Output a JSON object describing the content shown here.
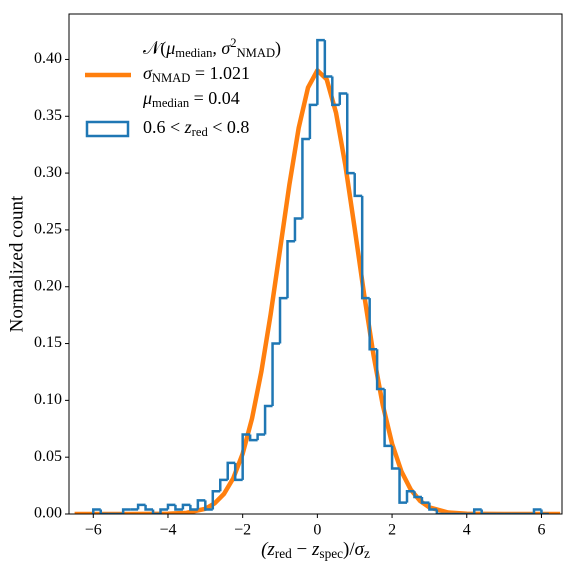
{
  "chart_data": {
    "type": "histogram",
    "ylabel": "Normalized count",
    "xlabel": [
      {
        "t": "(z",
        "i": true
      },
      {
        "t": "red",
        "sub": true
      },
      {
        "t": " − "
      },
      {
        "t": "z",
        "i": true
      },
      {
        "t": "spec",
        "sub": true
      },
      {
        "t": ")/"
      },
      {
        "t": "σ",
        "i": true
      },
      {
        "t": "z",
        "sub": true
      }
    ],
    "xlim": [
      -6.65,
      6.55
    ],
    "ylim": [
      0,
      0.44
    ],
    "xticks": [
      {
        "value": -6,
        "label": "−6"
      },
      {
        "value": -4,
        "label": "−4"
      },
      {
        "value": -2,
        "label": "−2"
      },
      0,
      2,
      4,
      6
    ],
    "yticks": [
      {
        "value": 0,
        "label": "0.00"
      },
      {
        "value": 0.05,
        "label": "0.05"
      },
      {
        "value": 0.1,
        "label": "0.10"
      },
      {
        "value": 0.15,
        "label": "0.15"
      },
      {
        "value": 0.2,
        "label": "0.20"
      },
      {
        "value": 0.25,
        "label": "0.25"
      },
      {
        "value": 0.3,
        "label": "0.30"
      },
      {
        "value": 0.35,
        "label": "0.35"
      },
      {
        "value": 0.4,
        "label": "0.40"
      }
    ],
    "legend": "upper left",
    "series": [
      {
        "type": "line",
        "color": "#ff7f0e",
        "name": [
          [
            {
              "t": "𝒩("
            },
            {
              "t": "μ",
              "i": true
            },
            {
              "t": "median",
              "sub": true
            },
            {
              "t": ", "
            },
            {
              "t": "σ",
              "i": true
            },
            {
              "t": "2",
              "sup": true
            },
            {
              "t": "NMAD",
              "sub": true
            },
            {
              "t": ")"
            }
          ],
          [
            {
              "t": "σ",
              "i": true
            },
            {
              "t": "NMAD",
              "sub": true
            },
            {
              "t": " = 1.021"
            }
          ],
          [
            {
              "t": "μ",
              "i": true
            },
            {
              "t": "median",
              "sub": true
            },
            {
              "t": " = 0.04"
            }
          ]
        ],
        "x": [
          -6.5,
          -5,
          -4,
          -3.5,
          -3,
          -2.75,
          -2.5,
          -2.25,
          -2,
          -1.75,
          -1.5,
          -1.25,
          -1,
          -0.75,
          -0.5,
          -0.25,
          0,
          0.25,
          0.5,
          0.75,
          1,
          1.25,
          1.5,
          1.75,
          2,
          2.25,
          2.5,
          2.75,
          3,
          3.5,
          4,
          5,
          6.5
        ],
        "values": [
          0,
          0,
          0.0002,
          0.001,
          0.0046,
          0.0094,
          0.0177,
          0.0316,
          0.0531,
          0.084,
          0.1252,
          0.1759,
          0.2326,
          0.2897,
          0.3398,
          0.3753,
          0.3904,
          0.3825,
          0.353,
          0.3068,
          0.2511,
          0.1936,
          0.1405,
          0.0961,
          0.0619,
          0.0375,
          0.0215,
          0.0115,
          0.0058,
          0.0013,
          0.0002,
          0,
          0
        ]
      },
      {
        "type": "step",
        "color": "#1f77b4",
        "name": [
          [
            {
              "t": "0.6 < "
            },
            {
              "t": "z",
              "i": true
            },
            {
              "t": "red",
              "sub": true
            },
            {
              "t": " < 0.8"
            }
          ]
        ],
        "bins": [
          -6.0,
          -5.8,
          -5.6,
          -5.4,
          -5.2,
          -5.0,
          -4.8,
          -4.6,
          -4.4,
          -4.2,
          -4.0,
          -3.8,
          -3.6,
          -3.4,
          -3.2,
          -3.0,
          -2.8,
          -2.6,
          -2.4,
          -2.2,
          -2.0,
          -1.8,
          -1.6,
          -1.4,
          -1.2,
          -1.0,
          -0.8,
          -0.6,
          -0.4,
          -0.2,
          0.0,
          0.2,
          0.4,
          0.6,
          0.8,
          1.0,
          1.2,
          1.4,
          1.6,
          1.8,
          2.0,
          2.2,
          2.4,
          2.6,
          2.8,
          3.0,
          3.2,
          3.4,
          3.6,
          3.8,
          4.0,
          4.2,
          4.4,
          4.6,
          4.8,
          5.0,
          5.2,
          5.4,
          5.6,
          5.8,
          6.0,
          6.2
        ],
        "values": [
          0.004,
          0,
          0,
          0,
          0.004,
          0.004,
          0.008,
          0.004,
          0,
          0.004,
          0.008,
          0.004,
          0.008,
          0.004,
          0.012,
          0.004,
          0.02,
          0.03,
          0.045,
          0.03,
          0.07,
          0.065,
          0.07,
          0.095,
          0.15,
          0.19,
          0.24,
          0.26,
          0.33,
          0.36,
          0.417,
          0.385,
          0.36,
          0.37,
          0.3,
          0.28,
          0.19,
          0.145,
          0.11,
          0.06,
          0.04,
          0.01,
          0.02,
          0.015,
          0.01,
          0.004,
          0,
          0,
          0,
          0,
          0,
          0.004,
          0,
          0,
          0,
          0,
          0,
          0,
          0,
          0.004,
          0
        ]
      }
    ]
  }
}
